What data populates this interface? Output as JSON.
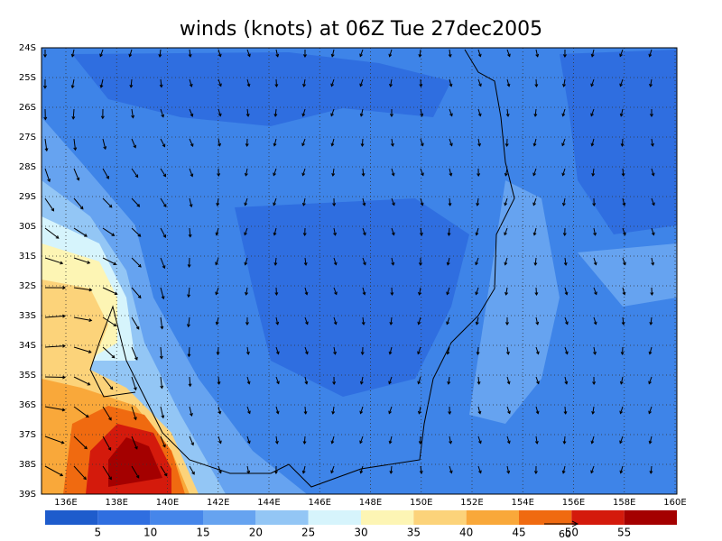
{
  "title": "winds (knots) at 06Z Tue 27dec2005",
  "lon_labels": [
    "136E",
    "138E",
    "140E",
    "142E",
    "144E",
    "146E",
    "148E",
    "150E",
    "152E",
    "154E",
    "156E",
    "158E",
    "160E"
  ],
  "lat_labels": [
    "24S",
    "25S",
    "26S",
    "27S",
    "28S",
    "29S",
    "30S",
    "31S",
    "32S",
    "33S",
    "34S",
    "35S",
    "36S",
    "37S",
    "38S",
    "39S"
  ],
  "legend": {
    "colors": [
      "#1e5ccc",
      "#2f6ee0",
      "#4686ea",
      "#66a3f0",
      "#93c6f5",
      "#d6f4fc",
      "#fdf5b4",
      "#fcd37a",
      "#f9a83a",
      "#f06a10",
      "#d41a0c",
      "#a40000"
    ],
    "labels": [
      "5",
      "10",
      "15",
      "20",
      "25",
      "30",
      "35",
      "40",
      "45",
      "50",
      "55"
    ]
  },
  "reference_vector": "60"
}
